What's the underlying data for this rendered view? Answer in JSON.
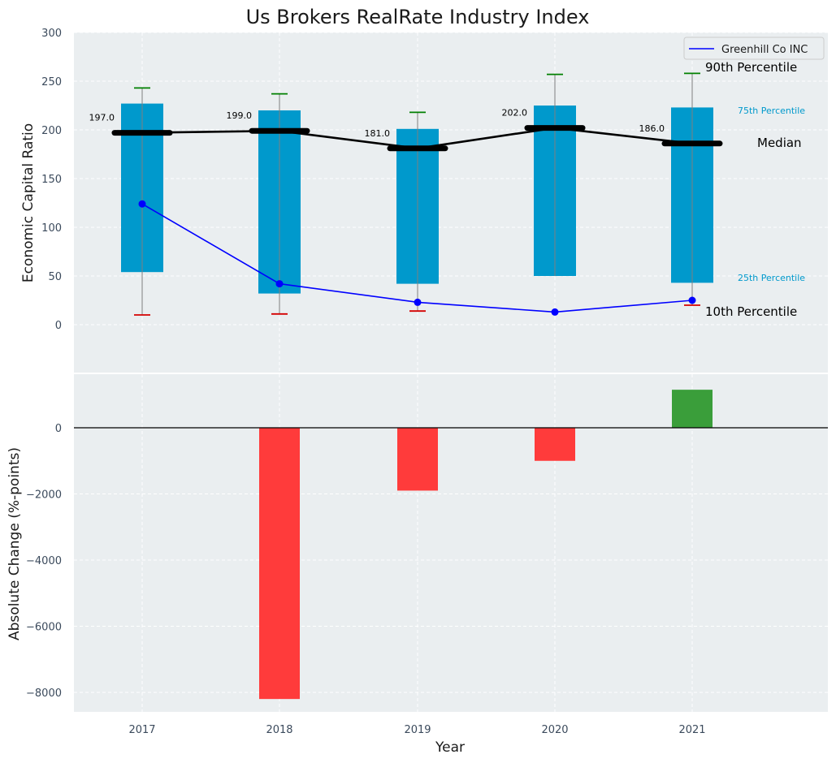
{
  "chart_data": {
    "title": "Us Brokers RealRate Industry Index",
    "categories": [
      "2017",
      "2018",
      "2019",
      "2020",
      "2021"
    ],
    "top_panel": {
      "type": "box",
      "ylabel": "Economic Capital Ratio",
      "ylim": [
        -50,
        300
      ],
      "yticks": [
        0,
        50,
        100,
        150,
        200,
        250,
        300
      ],
      "p10": [
        10,
        11,
        14,
        null,
        20
      ],
      "p25": [
        54,
        32,
        42,
        50,
        43
      ],
      "median": [
        197.0,
        199.0,
        181.0,
        202.0,
        186.0
      ],
      "p75": [
        227,
        220,
        201,
        225,
        223
      ],
      "p90": [
        243,
        237,
        218,
        257,
        258
      ],
      "median_labels": [
        "197.0",
        "199.0",
        "181.0",
        "202.0",
        "186.0"
      ],
      "company_series": {
        "name": "Greenhill Co INC",
        "values": [
          124,
          42,
          23,
          13,
          25
        ],
        "color": "#0000ff"
      },
      "annotations": {
        "p90": "90th Percentile",
        "p75": "75th Percentile",
        "median": "Median",
        "p25": "25th Percentile",
        "p10": "10th Percentile"
      }
    },
    "bottom_panel": {
      "type": "bar",
      "ylabel": "Absolute Change (%-points)",
      "xlabel": "Year",
      "ylim": [
        -8600,
        1200
      ],
      "yticks": [
        -8000,
        -6000,
        -4000,
        -2000,
        0
      ],
      "ytick_labels": [
        "−8000",
        "−6000",
        "−4000",
        "−2000",
        "0"
      ],
      "values": [
        null,
        -8200,
        -1900,
        -1000,
        1150
      ]
    },
    "legend_position": "top-right",
    "grid": true
  },
  "colors": {
    "panel_bg": "#eaeef0",
    "box": "#0099cc",
    "median": "#000000",
    "p90_cap": "#008000",
    "p10_cap": "#d40000",
    "positive_bar": "#3a9e3a",
    "negative_bar": "#ff3b3b",
    "whisker": "#808080",
    "label_blue": "#0099cc"
  }
}
